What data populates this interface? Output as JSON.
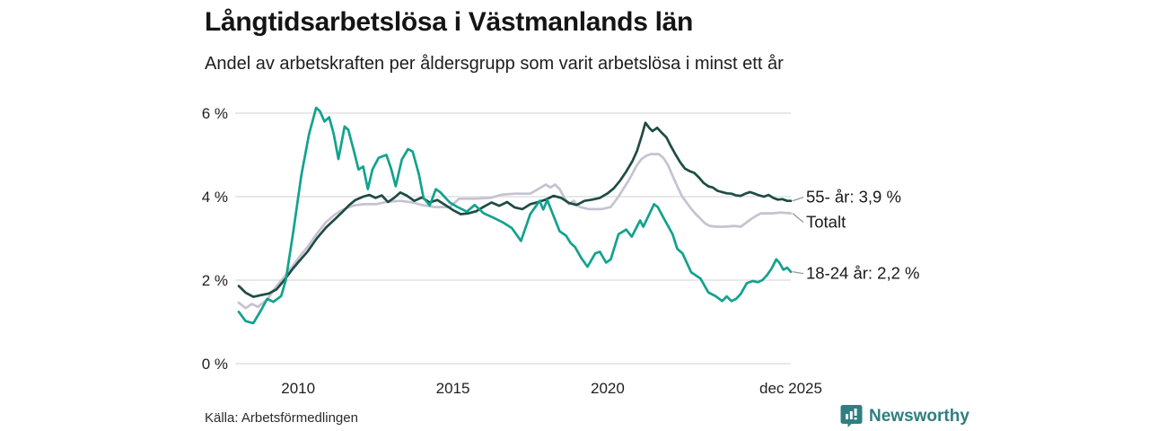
{
  "header": {
    "title": "Långtidsarbetslösa i Västmanlands län",
    "subtitle": "Andel av arbetskraften per åldersgrupp som varit arbetslösa i minst ett år"
  },
  "footer": {
    "source": "Källa: Arbetsförmedlingen",
    "brand": "Newsworthy"
  },
  "colors": {
    "dark": "#1e4c43",
    "teal": "#12a28d",
    "gray": "#c5c3d1",
    "grid": "#d9d9de",
    "connector": "#8f8f98",
    "axis_text": "#1f1f1f",
    "brand_teal": "#2e7f81"
  },
  "chart_data": {
    "type": "line",
    "title": "Långtidsarbetslösa i Västmanlands län",
    "subtitle": "Andel av arbetskraften per åldersgrupp som varit arbetslösa i minst ett år",
    "unit": "% av arbetskraften",
    "grid": true,
    "legend_position": "right-of-line-ends",
    "x_range": [
      2008.08,
      2025.92
    ],
    "x_axis": {
      "ticks": [
        {
          "label": "2010",
          "year": 2010
        },
        {
          "label": "2015",
          "year": 2015
        },
        {
          "label": "2020",
          "year": 2020
        },
        {
          "label": "dec 2025",
          "year": 2025.92
        }
      ]
    },
    "y_axis": {
      "range": [
        0,
        6.5
      ],
      "ticks": [
        {
          "label": "6 %",
          "value": 6
        },
        {
          "label": "4 %",
          "value": 4
        },
        {
          "label": "2 %",
          "value": 2
        },
        {
          "label": "0 %",
          "value": 0
        }
      ]
    },
    "series": [
      {
        "name": "55- år",
        "end_label": "55- år: 3,9 %",
        "last_value_text": "3,9 %",
        "color_key": "dark",
        "points": [
          [
            2008.08,
            1.86
          ],
          [
            2008.3,
            1.7
          ],
          [
            2008.55,
            1.6
          ],
          [
            2008.8,
            1.64
          ],
          [
            2009.05,
            1.68
          ],
          [
            2009.3,
            1.78
          ],
          [
            2009.55,
            2.0
          ],
          [
            2009.8,
            2.25
          ],
          [
            2010.05,
            2.47
          ],
          [
            2010.3,
            2.68
          ],
          [
            2010.6,
            3.0
          ],
          [
            2010.9,
            3.26
          ],
          [
            2011.2,
            3.47
          ],
          [
            2011.45,
            3.65
          ],
          [
            2011.65,
            3.8
          ],
          [
            2011.85,
            3.92
          ],
          [
            2012.1,
            4.0
          ],
          [
            2012.3,
            4.04
          ],
          [
            2012.5,
            3.97
          ],
          [
            2012.7,
            4.03
          ],
          [
            2012.9,
            3.87
          ],
          [
            2013.1,
            3.97
          ],
          [
            2013.3,
            4.1
          ],
          [
            2013.5,
            4.03
          ],
          [
            2013.75,
            3.9
          ],
          [
            2014.0,
            3.98
          ],
          [
            2014.25,
            3.86
          ],
          [
            2014.5,
            3.92
          ],
          [
            2014.75,
            3.8
          ],
          [
            2015.0,
            3.68
          ],
          [
            2015.25,
            3.58
          ],
          [
            2015.5,
            3.6
          ],
          [
            2015.75,
            3.65
          ],
          [
            2016.0,
            3.76
          ],
          [
            2016.25,
            3.86
          ],
          [
            2016.5,
            3.78
          ],
          [
            2016.75,
            3.87
          ],
          [
            2017.0,
            3.74
          ],
          [
            2017.25,
            3.7
          ],
          [
            2017.5,
            3.82
          ],
          [
            2017.75,
            3.87
          ],
          [
            2018.0,
            3.93
          ],
          [
            2018.25,
            4.02
          ],
          [
            2018.5,
            3.97
          ],
          [
            2018.75,
            3.85
          ],
          [
            2019.0,
            3.8
          ],
          [
            2019.25,
            3.9
          ],
          [
            2019.5,
            3.93
          ],
          [
            2019.75,
            3.97
          ],
          [
            2020.0,
            4.08
          ],
          [
            2020.2,
            4.2
          ],
          [
            2020.4,
            4.38
          ],
          [
            2020.6,
            4.6
          ],
          [
            2020.8,
            4.85
          ],
          [
            2020.95,
            5.1
          ],
          [
            2021.1,
            5.45
          ],
          [
            2021.22,
            5.77
          ],
          [
            2021.35,
            5.64
          ],
          [
            2021.45,
            5.57
          ],
          [
            2021.6,
            5.65
          ],
          [
            2021.75,
            5.53
          ],
          [
            2021.9,
            5.42
          ],
          [
            2022.05,
            5.2
          ],
          [
            2022.2,
            5.0
          ],
          [
            2022.35,
            4.82
          ],
          [
            2022.5,
            4.67
          ],
          [
            2022.65,
            4.61
          ],
          [
            2022.8,
            4.57
          ],
          [
            2022.95,
            4.46
          ],
          [
            2023.1,
            4.33
          ],
          [
            2023.25,
            4.25
          ],
          [
            2023.4,
            4.22
          ],
          [
            2023.55,
            4.14
          ],
          [
            2023.7,
            4.11
          ],
          [
            2023.85,
            4.08
          ],
          [
            2024.0,
            4.07
          ],
          [
            2024.15,
            4.03
          ],
          [
            2024.3,
            4.02
          ],
          [
            2024.45,
            4.07
          ],
          [
            2024.6,
            4.11
          ],
          [
            2024.75,
            4.07
          ],
          [
            2024.9,
            4.03
          ],
          [
            2025.05,
            4.0
          ],
          [
            2025.2,
            4.04
          ],
          [
            2025.35,
            3.97
          ],
          [
            2025.5,
            3.93
          ],
          [
            2025.65,
            3.94
          ],
          [
            2025.8,
            3.9
          ],
          [
            2025.92,
            3.9
          ]
        ]
      },
      {
        "name": "Totalt",
        "end_label": "Totalt",
        "last_value_text": "3,6 %",
        "color_key": "gray",
        "points": [
          [
            2008.08,
            1.46
          ],
          [
            2008.3,
            1.33
          ],
          [
            2008.5,
            1.43
          ],
          [
            2008.7,
            1.36
          ],
          [
            2009.0,
            1.54
          ],
          [
            2009.3,
            1.86
          ],
          [
            2009.55,
            2.08
          ],
          [
            2009.8,
            2.32
          ],
          [
            2010.05,
            2.57
          ],
          [
            2010.3,
            2.79
          ],
          [
            2010.6,
            3.11
          ],
          [
            2010.9,
            3.39
          ],
          [
            2011.2,
            3.58
          ],
          [
            2011.5,
            3.71
          ],
          [
            2011.8,
            3.79
          ],
          [
            2012.1,
            3.82
          ],
          [
            2012.5,
            3.82
          ],
          [
            2012.9,
            3.88
          ],
          [
            2013.3,
            3.9
          ],
          [
            2013.7,
            3.86
          ],
          [
            2014.0,
            3.8
          ],
          [
            2014.4,
            3.75
          ],
          [
            2014.9,
            3.75
          ],
          [
            2015.2,
            3.95
          ],
          [
            2015.7,
            3.95
          ],
          [
            2016.2,
            3.97
          ],
          [
            2016.6,
            4.05
          ],
          [
            2017.0,
            4.07
          ],
          [
            2017.5,
            4.07
          ],
          [
            2017.8,
            4.2
          ],
          [
            2018.0,
            4.29
          ],
          [
            2018.15,
            4.22
          ],
          [
            2018.3,
            4.29
          ],
          [
            2018.45,
            4.18
          ],
          [
            2018.6,
            3.97
          ],
          [
            2018.75,
            3.82
          ],
          [
            2018.9,
            3.9
          ],
          [
            2019.1,
            3.75
          ],
          [
            2019.4,
            3.7
          ],
          [
            2019.8,
            3.7
          ],
          [
            2020.1,
            3.75
          ],
          [
            2020.35,
            4.0
          ],
          [
            2020.5,
            4.18
          ],
          [
            2020.65,
            4.35
          ],
          [
            2020.8,
            4.55
          ],
          [
            2020.95,
            4.76
          ],
          [
            2021.1,
            4.9
          ],
          [
            2021.25,
            4.98
          ],
          [
            2021.4,
            5.02
          ],
          [
            2021.65,
            5.02
          ],
          [
            2021.8,
            4.93
          ],
          [
            2021.95,
            4.76
          ],
          [
            2022.1,
            4.5
          ],
          [
            2022.25,
            4.25
          ],
          [
            2022.4,
            4.01
          ],
          [
            2022.55,
            3.86
          ],
          [
            2022.7,
            3.71
          ],
          [
            2022.85,
            3.58
          ],
          [
            2023.0,
            3.47
          ],
          [
            2023.15,
            3.36
          ],
          [
            2023.3,
            3.3
          ],
          [
            2023.5,
            3.28
          ],
          [
            2023.8,
            3.28
          ],
          [
            2024.1,
            3.3
          ],
          [
            2024.3,
            3.28
          ],
          [
            2024.5,
            3.39
          ],
          [
            2024.65,
            3.47
          ],
          [
            2024.8,
            3.54
          ],
          [
            2024.95,
            3.6
          ],
          [
            2025.3,
            3.6
          ],
          [
            2025.6,
            3.62
          ],
          [
            2025.92,
            3.6
          ]
        ]
      },
      {
        "name": "18-24 år",
        "end_label": "18-24 år: 2,2 %",
        "last_value_text": "2,2 %",
        "color_key": "teal",
        "points": [
          [
            2008.08,
            1.24
          ],
          [
            2008.3,
            1.02
          ],
          [
            2008.55,
            0.97
          ],
          [
            2008.8,
            1.28
          ],
          [
            2009.0,
            1.55
          ],
          [
            2009.2,
            1.48
          ],
          [
            2009.45,
            1.62
          ],
          [
            2009.6,
            2.0
          ],
          [
            2009.85,
            3.2
          ],
          [
            2010.1,
            4.5
          ],
          [
            2010.35,
            5.5
          ],
          [
            2010.58,
            6.13
          ],
          [
            2010.7,
            6.05
          ],
          [
            2010.85,
            5.8
          ],
          [
            2011.0,
            5.9
          ],
          [
            2011.15,
            5.5
          ],
          [
            2011.3,
            4.9
          ],
          [
            2011.5,
            5.68
          ],
          [
            2011.62,
            5.6
          ],
          [
            2011.8,
            5.1
          ],
          [
            2011.95,
            4.65
          ],
          [
            2012.1,
            4.72
          ],
          [
            2012.25,
            4.18
          ],
          [
            2012.4,
            4.65
          ],
          [
            2012.6,
            4.93
          ],
          [
            2012.85,
            5.0
          ],
          [
            2013.0,
            4.68
          ],
          [
            2013.15,
            4.25
          ],
          [
            2013.35,
            4.89
          ],
          [
            2013.55,
            5.14
          ],
          [
            2013.7,
            5.08
          ],
          [
            2013.9,
            4.54
          ],
          [
            2014.05,
            3.97
          ],
          [
            2014.25,
            3.79
          ],
          [
            2014.45,
            4.18
          ],
          [
            2014.6,
            4.1
          ],
          [
            2014.9,
            3.86
          ],
          [
            2015.15,
            3.75
          ],
          [
            2015.45,
            3.64
          ],
          [
            2015.7,
            3.8
          ],
          [
            2016.0,
            3.6
          ],
          [
            2016.3,
            3.5
          ],
          [
            2016.6,
            3.39
          ],
          [
            2016.9,
            3.25
          ],
          [
            2017.2,
            2.94
          ],
          [
            2017.5,
            3.58
          ],
          [
            2017.8,
            3.9
          ],
          [
            2017.92,
            3.69
          ],
          [
            2018.05,
            3.92
          ],
          [
            2018.25,
            3.54
          ],
          [
            2018.45,
            3.17
          ],
          [
            2018.65,
            3.07
          ],
          [
            2018.8,
            2.89
          ],
          [
            2018.95,
            2.79
          ],
          [
            2019.15,
            2.53
          ],
          [
            2019.35,
            2.32
          ],
          [
            2019.6,
            2.64
          ],
          [
            2019.75,
            2.68
          ],
          [
            2019.95,
            2.42
          ],
          [
            2020.1,
            2.5
          ],
          [
            2020.35,
            3.1
          ],
          [
            2020.6,
            3.21
          ],
          [
            2020.78,
            3.04
          ],
          [
            2021.05,
            3.43
          ],
          [
            2021.15,
            3.28
          ],
          [
            2021.5,
            3.82
          ],
          [
            2021.62,
            3.75
          ],
          [
            2021.8,
            3.5
          ],
          [
            2022.1,
            3.1
          ],
          [
            2022.25,
            2.75
          ],
          [
            2022.42,
            2.64
          ],
          [
            2022.7,
            2.19
          ],
          [
            2023.0,
            2.04
          ],
          [
            2023.25,
            1.71
          ],
          [
            2023.5,
            1.61
          ],
          [
            2023.7,
            1.5
          ],
          [
            2023.85,
            1.61
          ],
          [
            2024.0,
            1.5
          ],
          [
            2024.15,
            1.55
          ],
          [
            2024.3,
            1.67
          ],
          [
            2024.5,
            1.93
          ],
          [
            2024.7,
            1.98
          ],
          [
            2024.85,
            1.95
          ],
          [
            2025.0,
            2.0
          ],
          [
            2025.15,
            2.12
          ],
          [
            2025.3,
            2.28
          ],
          [
            2025.45,
            2.5
          ],
          [
            2025.55,
            2.42
          ],
          [
            2025.68,
            2.25
          ],
          [
            2025.8,
            2.3
          ],
          [
            2025.92,
            2.2
          ]
        ]
      }
    ]
  }
}
